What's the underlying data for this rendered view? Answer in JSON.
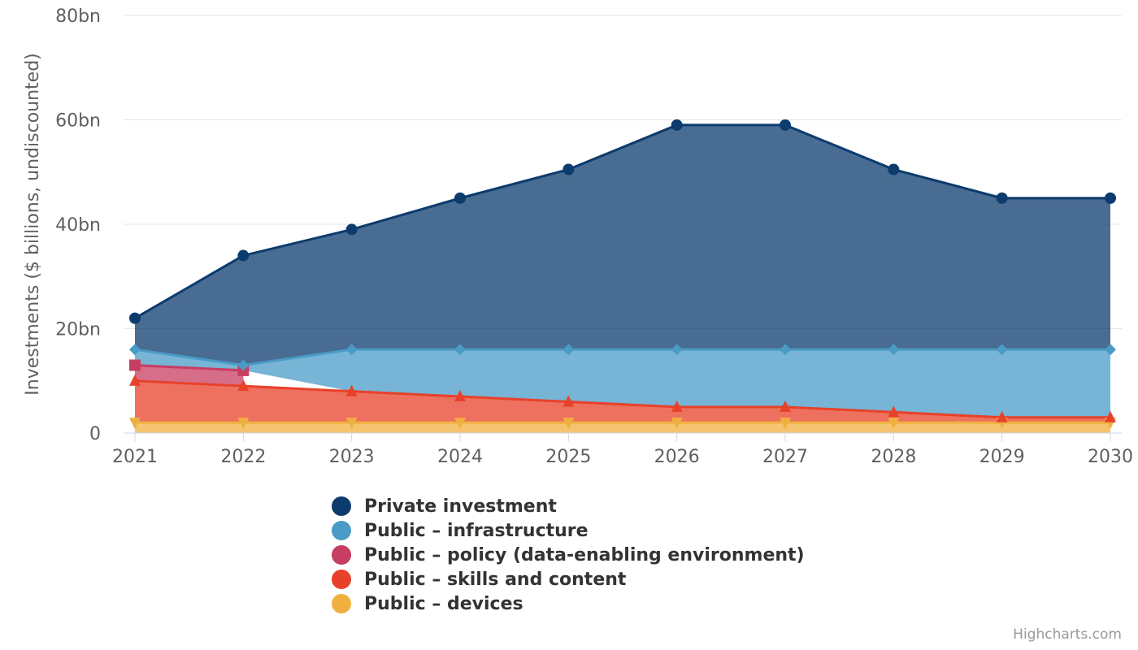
{
  "chart_data": {
    "type": "area",
    "stacked": true,
    "title": "",
    "xlabel": "",
    "ylabel": "Investments ($ billions, undiscounted)",
    "ylim": [
      0,
      80
    ],
    "y_ticks": [
      "0",
      "20bn",
      "40bn",
      "60bn",
      "80bn"
    ],
    "y_tick_values": [
      0,
      20,
      40,
      60,
      80
    ],
    "categories": [
      "2021",
      "2022",
      "2023",
      "2024",
      "2025",
      "2026",
      "2027",
      "2028",
      "2029",
      "2030"
    ],
    "grid": true,
    "legend_position": "bottom",
    "series": [
      {
        "name": "Public – devices",
        "color": "#f0b040",
        "marker": "triangle-down",
        "values": [
          2,
          2,
          2,
          2,
          2,
          2,
          2,
          2,
          2,
          2
        ]
      },
      {
        "name": "Public – skills and content",
        "color": "#e8412a",
        "marker": "triangle",
        "values": [
          8,
          7,
          6,
          5,
          4,
          3,
          3,
          2,
          1,
          1
        ]
      },
      {
        "name": "Public – policy (data-enabling environment)",
        "color": "#c83d62",
        "marker": "square",
        "values": [
          3,
          3,
          null,
          null,
          null,
          null,
          null,
          null,
          null,
          null
        ]
      },
      {
        "name": "Public – infrastructure",
        "color": "#4a9bc7",
        "marker": "diamond",
        "values": [
          3,
          1,
          8,
          9,
          10,
          11,
          11,
          12,
          13,
          13
        ]
      },
      {
        "name": "Private investment",
        "color": "#0c3b6e",
        "marker": "circle",
        "values": [
          6,
          21,
          23,
          29,
          34.5,
          43,
          43,
          34.5,
          29,
          29
        ]
      }
    ]
  },
  "legend": {
    "items": [
      {
        "label": "Private investment",
        "color": "#0c3b6e"
      },
      {
        "label": "Public – infrastructure",
        "color": "#4a9bc7"
      },
      {
        "label": "Public – policy (data-enabling environment)",
        "color": "#c83d62"
      },
      {
        "label": "Public – skills and content",
        "color": "#e8412a"
      },
      {
        "label": "Public – devices",
        "color": "#f0b040"
      }
    ]
  },
  "credits": "Highcharts.com"
}
